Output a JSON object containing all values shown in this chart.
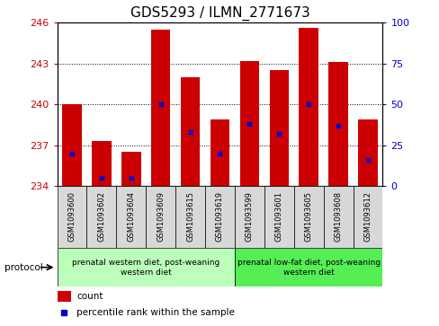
{
  "title": "GDS5293 / ILMN_2771673",
  "samples": [
    "GSM1093600",
    "GSM1093602",
    "GSM1093604",
    "GSM1093609",
    "GSM1093615",
    "GSM1093619",
    "GSM1093599",
    "GSM1093601",
    "GSM1093605",
    "GSM1093608",
    "GSM1093612"
  ],
  "bar_tops": [
    240.0,
    237.3,
    236.5,
    245.5,
    242.0,
    238.9,
    243.2,
    242.5,
    245.6,
    243.1,
    238.9
  ],
  "bar_base": 234.0,
  "percentile_ranks": [
    20,
    5,
    5,
    50,
    33,
    20,
    38,
    32,
    50,
    37,
    16
  ],
  "ylim_left": [
    234,
    246
  ],
  "ylim_right": [
    0,
    100
  ],
  "yticks_left": [
    234,
    237,
    240,
    243,
    246
  ],
  "yticks_right": [
    0,
    25,
    50,
    75,
    100
  ],
  "bar_color": "#cc0000",
  "percentile_color": "#0000cc",
  "grid_color": "#000000",
  "bg_color": "#ffffff",
  "plot_bg": "#ffffff",
  "group1_label": "prenatal western diet, post-weaning\nwestern diet",
  "group2_label": "prenatal low-fat diet, post-weaning\nwestern diet",
  "group1_indices": [
    0,
    1,
    2,
    3,
    4,
    5
  ],
  "group2_indices": [
    6,
    7,
    8,
    9,
    10
  ],
  "group1_color": "#bbffbb",
  "group2_color": "#55ee55",
  "protocol_label": "protocol",
  "legend_count": "count",
  "legend_pct": "percentile rank within the sample",
  "title_fontsize": 11,
  "tick_label_fontsize": 7,
  "axis_label_fontsize": 8
}
